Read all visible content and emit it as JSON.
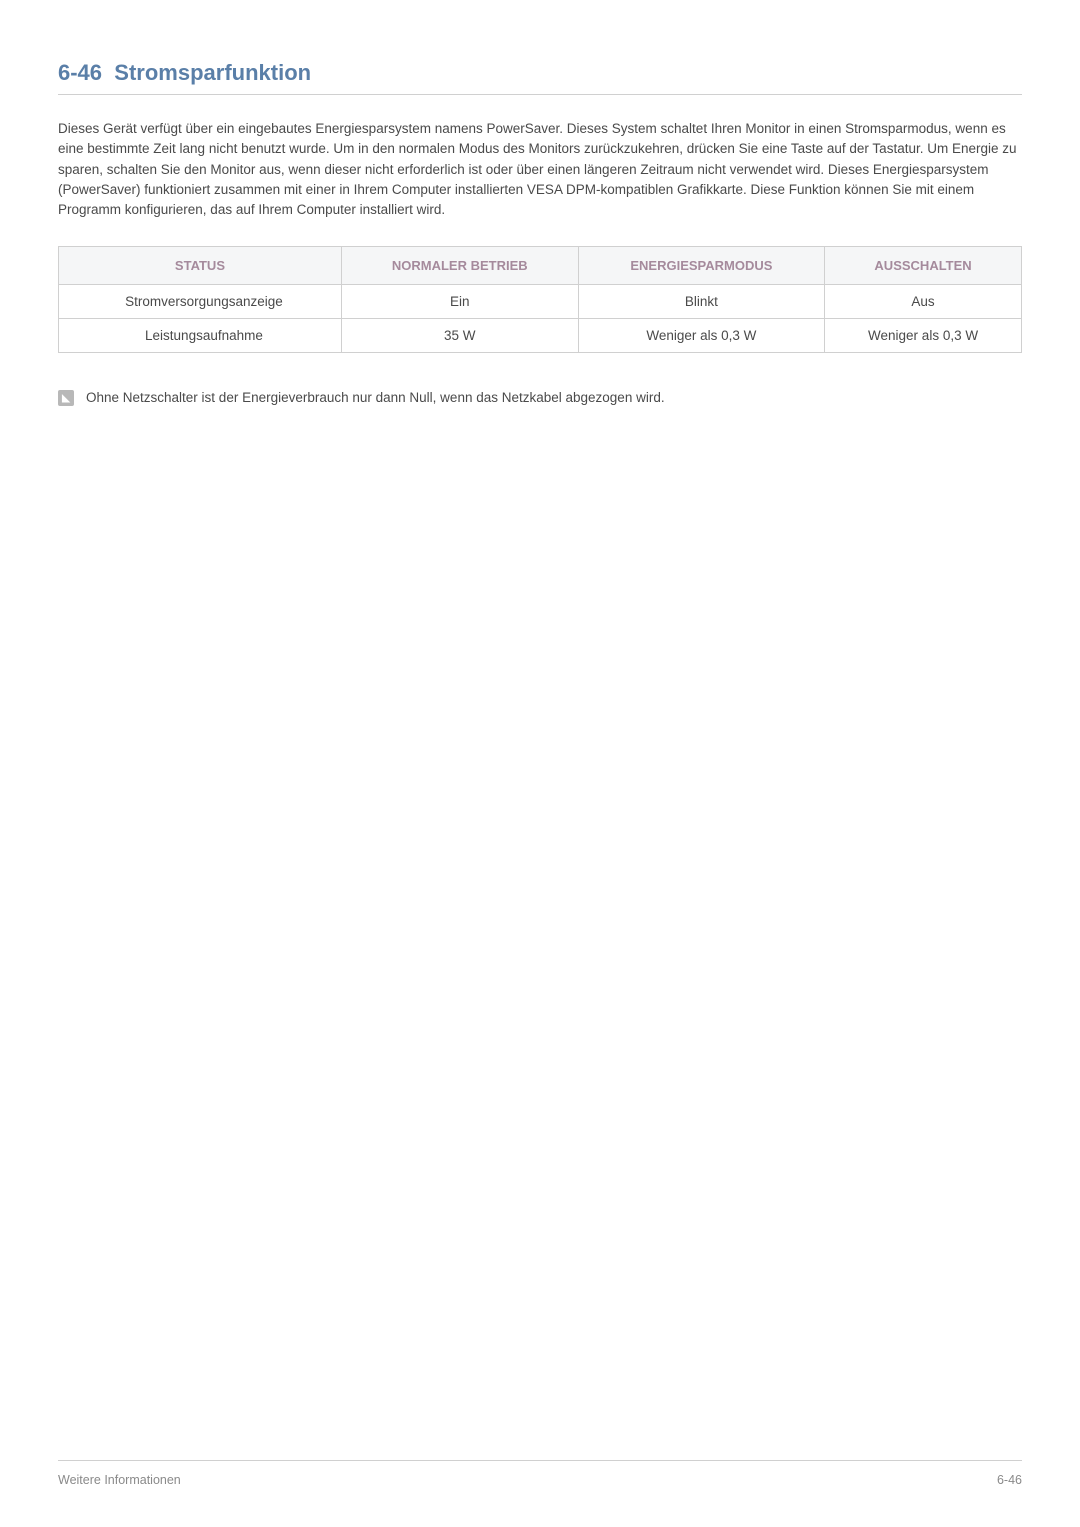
{
  "heading": {
    "number": "6-46",
    "title": "Stromsparfunktion"
  },
  "body_text": "Dieses Gerät verfügt über ein eingebautes Energiesparsystem namens PowerSaver. Dieses System schaltet Ihren Monitor in einen Stromsparmodus, wenn es eine bestimmte Zeit lang nicht benutzt wurde. Um in den normalen Modus des Monitors zurückzukehren, drücken Sie eine Taste auf der Tastatur. Um Energie zu sparen, schalten Sie den Monitor aus, wenn dieser nicht erforderlich ist oder über einen längeren Zeitraum nicht verwendet wird. Dieses Energiesparsystem (PowerSaver) funktioniert zusammen mit einer in Ihrem Computer installierten VESA DPM-kompatiblen Grafikkarte. Diese Funktion können Sie mit einem Programm konfigurieren, das auf Ihrem Computer installiert wird.",
  "table": {
    "headers": [
      "STATUS",
      "NORMALER BETRIEB",
      "ENERGIESPARMODUS",
      "AUSSCHALTEN"
    ],
    "rows": [
      [
        "Stromversorgungsanzeige",
        "Ein",
        "Blinkt",
        "Aus"
      ],
      [
        "Leistungsaufnahme",
        "35 W",
        "Weniger als 0,3 W",
        "Weniger als 0,3 W"
      ]
    ],
    "header_bg_color": "#f5f6f7",
    "header_text_color": "#a58a9c",
    "border_color": "#d0d0d0",
    "cell_text_color": "#4a4a4a"
  },
  "note": {
    "icon_symbol": "◥",
    "text": "Ohne Netzschalter ist der Energieverbrauch nur dann Null, wenn das Netzkabel abgezogen wird."
  },
  "footer": {
    "left": "Weitere Informationen",
    "right": "6-46"
  },
  "colors": {
    "heading_color": "#5a7fa8",
    "body_text_color": "#4a4a4a",
    "footer_text_color": "#8a8a8a",
    "divider_color": "#d0d0d0",
    "note_icon_bg": "#b8b8b8"
  }
}
